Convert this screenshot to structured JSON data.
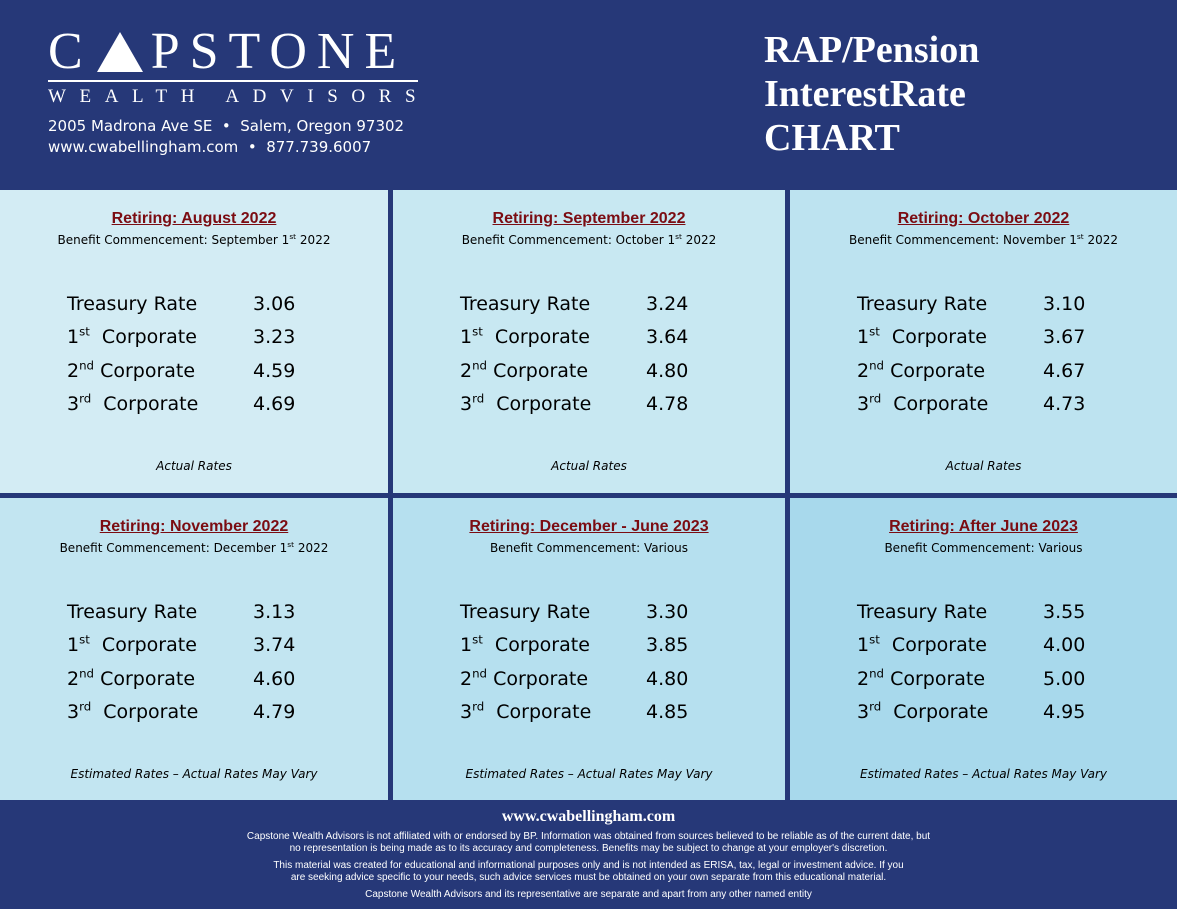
{
  "header": {
    "logo": {
      "word_left": "C",
      "word_right": "PSTONE",
      "subtitle": "WEALTH ADVISORS"
    },
    "address_line": "2005 Madrona Ave SE  •  Salem, Oregon 97302",
    "contact_line": "www.cwabellingham.com  •  877.739.6007",
    "title_lines": [
      "RAP/Pension",
      "InterestRate",
      "CHART"
    ]
  },
  "colors": {
    "navy": "#263878",
    "title_red": "#7b0c12"
  },
  "panels": [
    {
      "title": "Retiring: August 2022",
      "sub_pre": "Benefit Commencement: September 1",
      "sub_sup": "st",
      "sub_post": " 2022",
      "note": "Actual Rates",
      "rates": [
        {
          "ord": "",
          "sup": "",
          "label": "Treasury Rate",
          "value": "3.06"
        },
        {
          "ord": "1",
          "sup": "st",
          "label": "  Corporate",
          "value": "3.23"
        },
        {
          "ord": "2",
          "sup": "nd",
          "label": " Corporate",
          "value": "4.59"
        },
        {
          "ord": "3",
          "sup": "rd",
          "label": "  Corporate",
          "value": "4.69"
        }
      ]
    },
    {
      "title": "Retiring: September 2022",
      "sub_pre": "Benefit Commencement: October 1",
      "sub_sup": "st",
      "sub_post": " 2022",
      "note": "Actual Rates",
      "rates": [
        {
          "ord": "",
          "sup": "",
          "label": "Treasury Rate",
          "value": "3.24"
        },
        {
          "ord": "1",
          "sup": "st",
          "label": "  Corporate",
          "value": "3.64"
        },
        {
          "ord": "2",
          "sup": "nd",
          "label": " Corporate",
          "value": "4.80"
        },
        {
          "ord": "3",
          "sup": "rd",
          "label": "  Corporate",
          "value": "4.78"
        }
      ]
    },
    {
      "title": "Retiring: October 2022",
      "sub_pre": "Benefit Commencement: November 1",
      "sub_sup": "st",
      "sub_post": " 2022",
      "note": "Actual Rates",
      "rates": [
        {
          "ord": "",
          "sup": "",
          "label": "Treasury Rate",
          "value": "3.10"
        },
        {
          "ord": "1",
          "sup": "st",
          "label": "  Corporate",
          "value": "3.67"
        },
        {
          "ord": "2",
          "sup": "nd",
          "label": " Corporate",
          "value": "4.67"
        },
        {
          "ord": "3",
          "sup": "rd",
          "label": "  Corporate",
          "value": "4.73"
        }
      ]
    },
    {
      "title": "Retiring: November 2022",
      "sub_pre": "Benefit Commencement: December 1",
      "sub_sup": "st",
      "sub_post": " 2022",
      "note": "Estimated Rates – Actual Rates May Vary",
      "rates": [
        {
          "ord": "",
          "sup": "",
          "label": "Treasury Rate",
          "value": "3.13"
        },
        {
          "ord": "1",
          "sup": "st",
          "label": "  Corporate",
          "value": "3.74"
        },
        {
          "ord": "2",
          "sup": "nd",
          "label": " Corporate",
          "value": "4.60"
        },
        {
          "ord": "3",
          "sup": "rd",
          "label": "  Corporate",
          "value": "4.79"
        }
      ]
    },
    {
      "title": "Retiring: December - June 2023",
      "sub_pre": "Benefit Commencement: Various",
      "sub_sup": "",
      "sub_post": "",
      "note": "Estimated Rates – Actual Rates May Vary",
      "rates": [
        {
          "ord": "",
          "sup": "",
          "label": "Treasury Rate",
          "value": "3.30"
        },
        {
          "ord": "1",
          "sup": "st",
          "label": "  Corporate",
          "value": "3.85"
        },
        {
          "ord": "2",
          "sup": "nd",
          "label": " Corporate",
          "value": "4.80"
        },
        {
          "ord": "3",
          "sup": "rd",
          "label": "  Corporate",
          "value": "4.85"
        }
      ]
    },
    {
      "title": "Retiring: After June 2023",
      "sub_pre": "Benefit Commencement: Various",
      "sub_sup": "",
      "sub_post": "",
      "note": "Estimated Rates – Actual Rates May Vary",
      "rates": [
        {
          "ord": "",
          "sup": "",
          "label": "Treasury Rate",
          "value": "3.55"
        },
        {
          "ord": "1",
          "sup": "st",
          "label": "  Corporate",
          "value": "4.00"
        },
        {
          "ord": "2",
          "sup": "nd",
          "label": " Corporate",
          "value": "5.00"
        },
        {
          "ord": "3",
          "sup": "rd",
          "label": "  Corporate",
          "value": "4.95"
        }
      ]
    }
  ],
  "footer": {
    "url": "www.cwabellingham.com",
    "p1_l1": "Capstone Wealth Advisors is not affiliated with or endorsed by BP. Information was obtained from sources believed to be reliable as of the current date, but",
    "p1_l2": "no representation is being made as to its accuracy and completeness. Benefits may be subject to change at your employer's discretion.",
    "p2_l1": "This material was created for educational and informational purposes only and is not intended as ERISA, tax, legal or investment advice. If you",
    "p2_l2": "are seeking advice specific to your needs, such advice services must be obtained on your own separate from this educational material.",
    "p3": "Capstone Wealth Advisors and its representative are separate and apart from any other named entity"
  }
}
